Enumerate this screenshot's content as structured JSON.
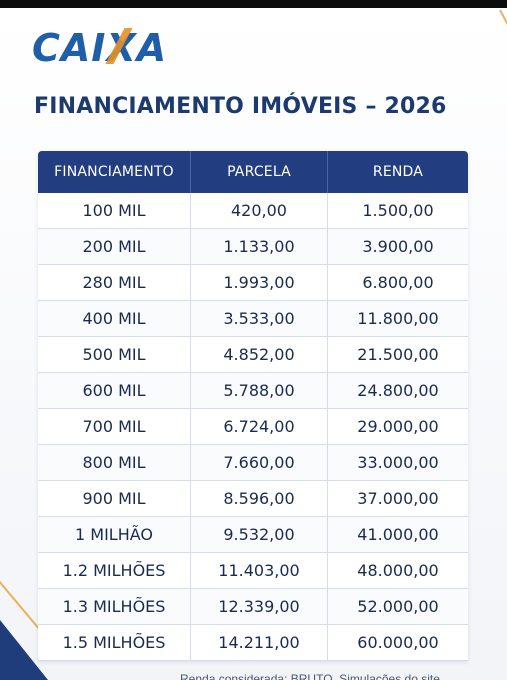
{
  "brand": {
    "logo_text": "CAIXA",
    "brand_blue": "#1f5ea8",
    "accent_orange": "#e39127"
  },
  "title": "FINANCIAMENTO IMÓVEIS – 2026",
  "table": {
    "headers": [
      "FINANCIAMENTO",
      "PARCELA",
      "RENDA"
    ],
    "header_color": "#223d80",
    "rows": [
      [
        "100 MIL",
        "420,00",
        "1.500,00"
      ],
      [
        "200 MIL",
        "1.133,00",
        "3.900,00"
      ],
      [
        "280 MIL",
        "1.993,00",
        "6.800,00"
      ],
      [
        "400 MIL",
        "3.533,00",
        "11.800,00"
      ],
      [
        "500 MIL",
        "4.852,00",
        "21.500,00"
      ],
      [
        "600 MIL",
        "5.788,00",
        "24.800,00"
      ],
      [
        "700 MIL",
        "6.724,00",
        "29.000,00"
      ],
      [
        "800 MIL",
        "7.660,00",
        "33.000,00"
      ],
      [
        "900 MIL",
        "8.596,00",
        "37.000,00"
      ],
      [
        "1 MILHÃO",
        "9.532,00",
        "41.000,00"
      ],
      [
        "1.2 MILHÕES",
        "11.403,00",
        "48.000,00"
      ],
      [
        "1.3 MILHÕES",
        "12.339,00",
        "52.000,00"
      ],
      [
        "1.5 MILHÕES",
        "14.211,00",
        "60.000,00"
      ]
    ]
  },
  "footnote": "Renda considerada: BRUTO. Simulações do site"
}
